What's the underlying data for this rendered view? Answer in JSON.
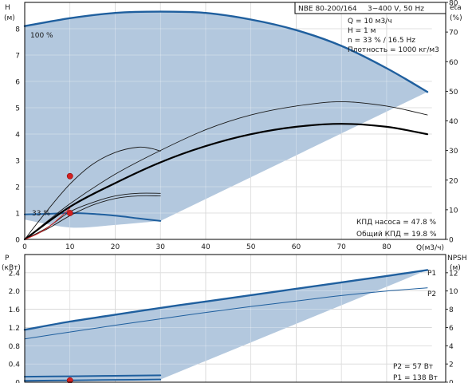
{
  "header": {
    "model": "NBE 80-200/164",
    "supply": "3~400 V, 50 Hz",
    "params": [
      "Q = 10 м3/ч",
      "H = 1 м",
      "n = 33 % / 16.5 Hz",
      "Плотность = 1000 кг/м3"
    ]
  },
  "top_results": [
    "КПД насоса = 47.8 %",
    "Общий КПД = 19.8 %"
  ],
  "bottom_results": [
    "P2 = 57 Вт",
    "P1 = 138 Вт"
  ],
  "colors": {
    "envelope": "#b3c8de",
    "curve": "#1f5f9e",
    "eff": "#000000",
    "point": "#d42020",
    "grid": "#aaaaaa"
  },
  "chart_data": [
    {
      "type": "line",
      "name": "head-efficiency",
      "xlabel": "Q(м3/ч)",
      "ylabel": "H",
      "ylabel_unit": "(м)",
      "y2label": "eta",
      "y2label_unit": "(%)",
      "xlim": [
        0,
        90
      ],
      "ylim": [
        0,
        9
      ],
      "y2lim": [
        0,
        80
      ],
      "x_ticks": [
        0,
        10,
        20,
        30,
        40,
        50,
        60,
        70,
        80
      ],
      "y_ticks": [
        0,
        1,
        2,
        3,
        4,
        5,
        6,
        7,
        8
      ],
      "y2_ticks": [
        0,
        10,
        20,
        30,
        40,
        50,
        60,
        70,
        80
      ],
      "curve_labels": [
        "100 %",
        "33 %"
      ],
      "envelope": [
        [
          0,
          8.1
        ],
        [
          10,
          8.4
        ],
        [
          20,
          8.6
        ],
        [
          30,
          8.65
        ],
        [
          40,
          8.6
        ],
        [
          50,
          8.35
        ],
        [
          60,
          7.95
        ],
        [
          70,
          7.35
        ],
        [
          80,
          6.5
        ],
        [
          89,
          5.6
        ],
        [
          30,
          0.7
        ],
        [
          20,
          0.55
        ],
        [
          10,
          0.45
        ],
        [
          0,
          0.75
        ]
      ],
      "series": [
        {
          "name": "100 %",
          "axis": "H",
          "style": "curve",
          "points": [
            [
              0,
              8.1
            ],
            [
              10,
              8.4
            ],
            [
              20,
              8.6
            ],
            [
              30,
              8.65
            ],
            [
              40,
              8.6
            ],
            [
              50,
              8.35
            ],
            [
              60,
              7.95
            ],
            [
              70,
              7.35
            ],
            [
              80,
              6.5
            ],
            [
              89,
              5.6
            ]
          ]
        },
        {
          "name": "33 %",
          "axis": "H",
          "style": "curve",
          "points": [
            [
              0,
              0.95
            ],
            [
              5,
              0.97
            ],
            [
              10,
              1.0
            ],
            [
              15,
              0.97
            ],
            [
              20,
              0.9
            ],
            [
              25,
              0.8
            ],
            [
              30,
              0.7
            ]
          ]
        },
        {
          "axis": "H",
          "style": "thin",
          "points": [
            [
              0,
              0
            ],
            [
              5,
              1.1
            ],
            [
              10,
              2.1
            ],
            [
              15,
              2.85
            ],
            [
              20,
              3.3
            ],
            [
              25,
              3.5
            ],
            [
              28,
              3.45
            ],
            [
              30,
              3.35
            ]
          ]
        },
        {
          "axis": "H",
          "style": "thin",
          "points": [
            [
              0,
              0
            ],
            [
              5,
              0.4
            ],
            [
              10,
              0.9
            ],
            [
              15,
              1.3
            ],
            [
              20,
              1.55
            ],
            [
              25,
              1.65
            ],
            [
              30,
              1.65
            ]
          ]
        },
        {
          "axis": "H",
          "style": "thin",
          "points": [
            [
              0,
              0
            ],
            [
              5,
              0.45
            ],
            [
              10,
              1.05
            ],
            [
              15,
              1.4
            ],
            [
              20,
              1.65
            ],
            [
              25,
              1.75
            ],
            [
              30,
              1.75
            ]
          ]
        },
        {
          "axis": "eta",
          "style": "thin",
          "points": [
            [
              0,
              0
            ],
            [
              10,
              12
            ],
            [
              20,
              22
            ],
            [
              30,
              30
            ],
            [
              40,
              37
            ],
            [
              50,
              42
            ],
            [
              60,
              45
            ],
            [
              70,
              46.5
            ],
            [
              80,
              45
            ],
            [
              89,
              42
            ]
          ]
        },
        {
          "axis": "eta",
          "style": "thick",
          "points": [
            [
              0,
              0
            ],
            [
              10,
              11
            ],
            [
              20,
              19
            ],
            [
              30,
              26
            ],
            [
              40,
              31.5
            ],
            [
              50,
              35.5
            ],
            [
              60,
              38
            ],
            [
              70,
              39
            ],
            [
              80,
              38
            ],
            [
              89,
              35.5
            ]
          ]
        },
        {
          "axis": "eta",
          "style": "red",
          "points": [
            [
              0,
              0
            ],
            [
              3,
              2
            ],
            [
              6,
              5
            ],
            [
              10,
              10.5
            ]
          ]
        }
      ],
      "operating_points": [
        [
          10,
          1.0
        ],
        [
          10,
          2.4
        ]
      ]
    },
    {
      "type": "line",
      "name": "power-npsh",
      "ylabel": "P",
      "ylabel_unit": "(кВт)",
      "y2label": "NPSH",
      "y2label_unit": "(м)",
      "xlim": [
        0,
        90
      ],
      "ylim": [
        0,
        2.8
      ],
      "y2lim": [
        0,
        14
      ],
      "y_ticks": [
        0,
        0.4,
        0.8,
        1.2,
        1.6,
        2.0,
        2.4
      ],
      "y2_ticks": [
        0,
        2,
        4,
        6,
        8,
        10,
        12
      ],
      "envelope": [
        [
          0,
          1.15
        ],
        [
          10,
          1.32
        ],
        [
          20,
          1.47
        ],
        [
          30,
          1.62
        ],
        [
          40,
          1.76
        ],
        [
          50,
          1.9
        ],
        [
          60,
          2.04
        ],
        [
          70,
          2.18
        ],
        [
          80,
          2.32
        ],
        [
          89,
          2.46
        ],
        [
          30,
          0.06
        ],
        [
          20,
          0.05
        ],
        [
          10,
          0.04
        ],
        [
          0,
          0.03
        ]
      ],
      "series": [
        {
          "name": "P1",
          "style": "curve",
          "points": [
            [
              0,
              1.15
            ],
            [
              10,
              1.33
            ],
            [
              20,
              1.48
            ],
            [
              30,
              1.63
            ],
            [
              40,
              1.77
            ],
            [
              50,
              1.91
            ],
            [
              60,
              2.05
            ],
            [
              70,
              2.19
            ],
            [
              80,
              2.33
            ],
            [
              89,
              2.46
            ]
          ]
        },
        {
          "name": "P2",
          "style": "thin",
          "points": [
            [
              0,
              0.95
            ],
            [
              10,
              1.1
            ],
            [
              20,
              1.25
            ],
            [
              30,
              1.39
            ],
            [
              40,
              1.53
            ],
            [
              50,
              1.66
            ],
            [
              60,
              1.78
            ],
            [
              70,
              1.9
            ],
            [
              80,
              2.0
            ],
            [
              89,
              2.07
            ]
          ]
        },
        {
          "style": "curve",
          "points": [
            [
              0,
              0.12
            ],
            [
              10,
              0.13
            ],
            [
              20,
              0.14
            ],
            [
              30,
              0.15
            ]
          ]
        },
        {
          "style": "curve",
          "points": [
            [
              0,
              0.03
            ],
            [
              10,
              0.04
            ],
            [
              20,
              0.05
            ],
            [
              30,
              0.06
            ]
          ]
        }
      ],
      "curve_labels": [
        "P1",
        "P2"
      ],
      "operating_points": [
        [
          10,
          0.04
        ]
      ]
    }
  ]
}
